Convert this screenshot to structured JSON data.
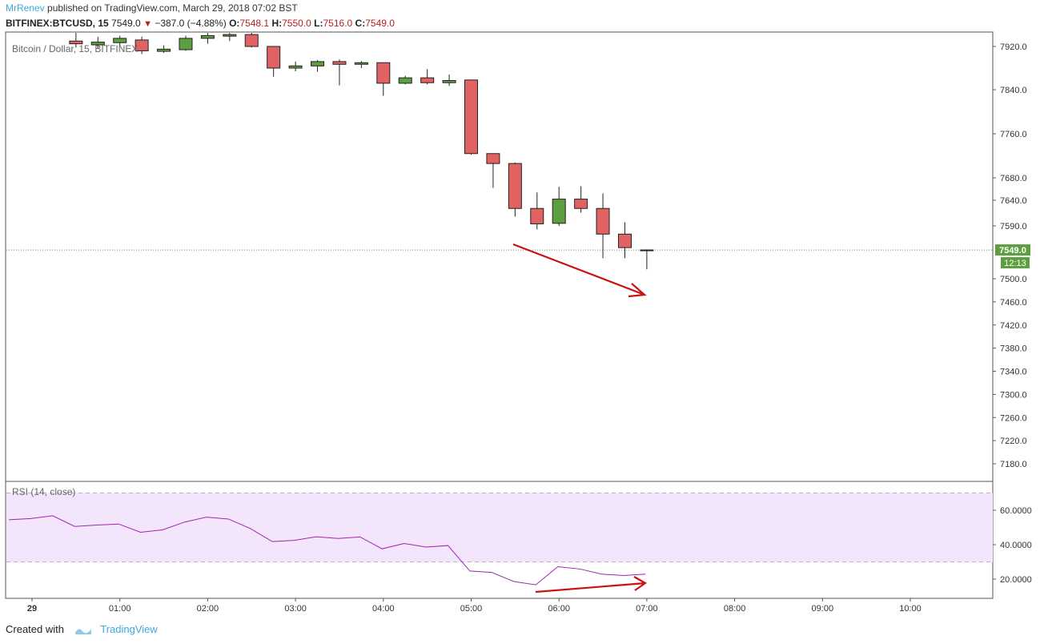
{
  "header": {
    "author": "MrRenev",
    "published": "published on TradingView.com, March 29, 2018 07:02 BST",
    "symbol": "BITFINEX:BTCUSD, 15",
    "last": "7549.0",
    "change": "−387.0 (−4.88%)",
    "o_label": "O:",
    "o_value": "7548.1",
    "h_label": "H:",
    "h_value": "7550.0",
    "l_label": "L:",
    "l_value": "7516.0",
    "c_label": "C:",
    "c_value": "7549.0"
  },
  "footer": {
    "created_with": "Created with",
    "brand": "TradingView"
  },
  "colors": {
    "up": "#5d9e3f",
    "down": "#e06262",
    "rsi_line": "#9c27b0",
    "rsi_band": "#f3e5fb",
    "arrow": "#cc1111",
    "price_tag": "#5d9e3f"
  },
  "chart_data": [
    {
      "type": "candlestick",
      "title": "Bitcoin / Dollar, 15, BITFINEX",
      "y_ticks": [
        7920.0,
        7840.0,
        7760.0,
        7680.0,
        7640.0,
        7590.0,
        7500.0,
        7460.0,
        7420.0,
        7380.0,
        7340.0,
        7300.0,
        7260.0,
        7220.0,
        7180.0
      ],
      "y_tick_labels": [
        "7920.0",
        "7840.0",
        "7760.0",
        "7680.0",
        "7640.0",
        "7590.0",
        "7500.0",
        "7460.0",
        "7420.0",
        "7380.0",
        "7340.0",
        "7300.0",
        "7260.0",
        "7220.0",
        "7180.0"
      ],
      "x_labels": [
        "29",
        "01:00",
        "02:00",
        "03:00",
        "04:00",
        "05:00",
        "06:00",
        "07:00",
        "08:00",
        "09:00",
        "10:00"
      ],
      "last_price_label": "7549.0",
      "countdown_label": "12:13",
      "candles": [
        {
          "t": "00:30",
          "o": 7930,
          "h": 7945,
          "l": 7918,
          "c": 7925
        },
        {
          "t": "00:45",
          "o": 7923,
          "h": 7938,
          "l": 7917,
          "c": 7928
        },
        {
          "t": "01:00",
          "o": 7927,
          "h": 7940,
          "l": 7921,
          "c": 7935
        },
        {
          "t": "01:15",
          "o": 7932,
          "h": 7938,
          "l": 7906,
          "c": 7912
        },
        {
          "t": "01:30",
          "o": 7911,
          "h": 7922,
          "l": 7908,
          "c": 7915
        },
        {
          "t": "01:45",
          "o": 7914,
          "h": 7940,
          "l": 7912,
          "c": 7935
        },
        {
          "t": "02:00",
          "o": 7935,
          "h": 7950,
          "l": 7925,
          "c": 7940
        },
        {
          "t": "02:15",
          "o": 7939,
          "h": 7945,
          "l": 7930,
          "c": 7942
        },
        {
          "t": "02:30",
          "o": 7942,
          "h": 7946,
          "l": 7918,
          "c": 7920
        },
        {
          "t": "02:45",
          "o": 7920,
          "h": 7920,
          "l": 7864,
          "c": 7880
        },
        {
          "t": "03:00",
          "o": 7880,
          "h": 7892,
          "l": 7874,
          "c": 7884
        },
        {
          "t": "03:15",
          "o": 7884,
          "h": 7895,
          "l": 7873,
          "c": 7892
        },
        {
          "t": "03:30",
          "o": 7892,
          "h": 7896,
          "l": 7848,
          "c": 7887
        },
        {
          "t": "03:45",
          "o": 7887,
          "h": 7893,
          "l": 7880,
          "c": 7890
        },
        {
          "t": "04:00",
          "o": 7890,
          "h": 7890,
          "l": 7829,
          "c": 7852
        },
        {
          "t": "04:15",
          "o": 7852,
          "h": 7866,
          "l": 7850,
          "c": 7862
        },
        {
          "t": "04:30",
          "o": 7862,
          "h": 7878,
          "l": 7850,
          "c": 7853
        },
        {
          "t": "04:45",
          "o": 7853,
          "h": 7868,
          "l": 7847,
          "c": 7857
        },
        {
          "t": "05:00",
          "o": 7858,
          "h": 7858,
          "l": 7722,
          "c": 7724
        },
        {
          "t": "05:15",
          "o": 7724,
          "h": 7724,
          "l": 7662,
          "c": 7706
        },
        {
          "t": "05:30",
          "o": 7706,
          "h": 7708,
          "l": 7608,
          "c": 7624
        },
        {
          "t": "05:45",
          "o": 7624,
          "h": 7654,
          "l": 7584,
          "c": 7594
        },
        {
          "t": "06:00",
          "o": 7595,
          "h": 7664,
          "l": 7590,
          "c": 7642
        },
        {
          "t": "06:15",
          "o": 7642,
          "h": 7665,
          "l": 7616,
          "c": 7624
        },
        {
          "t": "06:30",
          "o": 7624,
          "h": 7652,
          "l": 7535,
          "c": 7576
        },
        {
          "t": "06:45",
          "o": 7576,
          "h": 7597,
          "l": 7535,
          "c": 7553
        },
        {
          "t": "07:00",
          "o": 7548.1,
          "h": 7550.0,
          "l": 7516.0,
          "c": 7549.0
        }
      ]
    },
    {
      "type": "line",
      "title": "RSI (14, close)",
      "y_ticks": [
        60,
        40,
        20
      ],
      "y_tick_labels": [
        "60.0000",
        "40.0000",
        "20.0000"
      ],
      "band": [
        30,
        70
      ],
      "series": [
        {
          "values": [
            {
              "t": "00:00",
              "v": 54.5
            },
            {
              "t": "00:15",
              "v": 55.2
            },
            {
              "t": "00:30",
              "v": 56.8
            },
            {
              "t": "00:45",
              "v": 50.6
            },
            {
              "t": "01:00",
              "v": 51.4
            },
            {
              "t": "01:15",
              "v": 52.0
            },
            {
              "t": "01:30",
              "v": 47.2
            },
            {
              "t": "01:45",
              "v": 48.6
            },
            {
              "t": "02:00",
              "v": 53.1
            },
            {
              "t": "02:15",
              "v": 56.0
            },
            {
              "t": "02:30",
              "v": 54.9
            },
            {
              "t": "02:45",
              "v": 49.4
            },
            {
              "t": "03:00",
              "v": 41.8
            },
            {
              "t": "03:15",
              "v": 42.5
            },
            {
              "t": "03:30",
              "v": 44.6
            },
            {
              "t": "03:45",
              "v": 43.6
            },
            {
              "t": "04:00",
              "v": 44.5
            },
            {
              "t": "04:15",
              "v": 37.6
            },
            {
              "t": "04:30",
              "v": 40.7
            },
            {
              "t": "04:45",
              "v": 38.6
            },
            {
              "t": "05:00",
              "v": 39.5
            },
            {
              "t": "05:15",
              "v": 24.7
            },
            {
              "t": "05:30",
              "v": 23.9
            },
            {
              "t": "05:45",
              "v": 18.6
            },
            {
              "t": "06:00",
              "v": 16.7
            },
            {
              "t": "06:15",
              "v": 27.2
            },
            {
              "t": "06:30",
              "v": 25.9
            },
            {
              "t": "06:45",
              "v": 22.9
            },
            {
              "t": "07:00",
              "v": 22.1
            },
            {
              "t": "07:15",
              "v": 22.9
            }
          ]
        }
      ]
    }
  ]
}
